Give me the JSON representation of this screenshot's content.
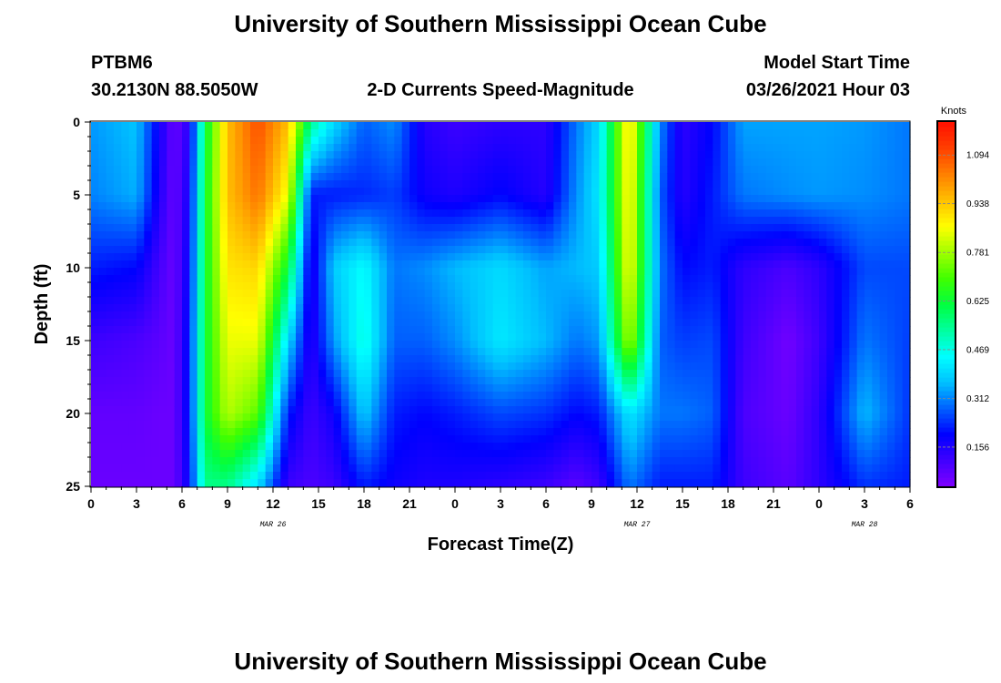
{
  "titles": {
    "top": "University of Southern Mississippi Ocean Cube",
    "bottom": "University of Southern Mississippi Ocean Cube"
  },
  "header": {
    "station": "PTBM6",
    "coords": "30.2130N 88.5050W",
    "plot_title": "2-D Currents Speed-Magnitude",
    "model_label": "Model Start Time",
    "model_time": "03/26/2021 Hour 03"
  },
  "chart_data": {
    "type": "heatmap",
    "title": "2-D Currents Speed-Magnitude",
    "xlabel": "Forecast Time(Z)",
    "ylabel": "Depth (ft)",
    "x_tick_labels": [
      "0",
      "3",
      "6",
      "9",
      "12",
      "15",
      "18",
      "21",
      "0",
      "3",
      "6",
      "9",
      "12",
      "15",
      "18",
      "21",
      "0",
      "3",
      "6"
    ],
    "x_tick_hours": [
      0,
      3,
      6,
      9,
      12,
      15,
      18,
      21,
      24,
      27,
      30,
      33,
      36,
      39,
      42,
      45,
      48,
      51,
      54
    ],
    "x_date_labels": [
      {
        "label": "MAR 26",
        "hour": 12
      },
      {
        "label": "MAR 27",
        "hour": 36
      },
      {
        "label": "MAR 28",
        "hour": 51
      }
    ],
    "xlim": [
      0,
      54
    ],
    "y_ticks": [
      0,
      5,
      10,
      15,
      20,
      25
    ],
    "ylim": [
      0,
      25
    ],
    "y_inverted": true,
    "colorbar": {
      "unit": "Knots",
      "range": [
        0.03,
        1.2
      ],
      "ticks": [
        0.156,
        0.312,
        0.469,
        0.625,
        0.781,
        0.938,
        1.094
      ],
      "tick_labels": [
        "0.156",
        "0.312",
        "0.469",
        "0.625",
        "0.781",
        "0.938",
        "1.094"
      ],
      "colors": [
        "#8000ff",
        "#4000ff",
        "#0000ff",
        "#0060ff",
        "#00c0ff",
        "#00ffff",
        "#00ffa0",
        "#00ff40",
        "#40ff00",
        "#a0ff00",
        "#ffff00",
        "#ffc000",
        "#ff8000",
        "#ff4000",
        "#ff1000"
      ]
    },
    "depth_grid_ft": [
      0,
      5,
      10,
      15,
      20,
      25
    ],
    "speed_profiles": [
      {
        "hour": 0,
        "speed": [
          0.33,
          0.31,
          0.22,
          0.12,
          0.07,
          0.06
        ]
      },
      {
        "hour": 3,
        "speed": [
          0.37,
          0.35,
          0.2,
          0.1,
          0.07,
          0.06
        ]
      },
      {
        "hour": 4.5,
        "speed": [
          0.18,
          0.16,
          0.11,
          0.08,
          0.06,
          0.06
        ]
      },
      {
        "hour": 5.5,
        "speed": [
          0.06,
          0.06,
          0.06,
          0.06,
          0.06,
          0.06
        ]
      },
      {
        "hour": 6.5,
        "speed": [
          0.15,
          0.18,
          0.2,
          0.22,
          0.22,
          0.2
        ]
      },
      {
        "hour": 7.5,
        "speed": [
          0.6,
          0.62,
          0.62,
          0.62,
          0.62,
          0.55
        ]
      },
      {
        "hour": 9,
        "speed": [
          0.95,
          0.95,
          0.9,
          0.85,
          0.8,
          0.55
        ]
      },
      {
        "hour": 11,
        "speed": [
          1.1,
          1.05,
          0.92,
          0.85,
          0.72,
          0.4
        ]
      },
      {
        "hour": 13,
        "speed": [
          0.95,
          0.85,
          0.62,
          0.4,
          0.22,
          0.12
        ]
      },
      {
        "hour": 14.5,
        "speed": [
          0.55,
          0.22,
          0.15,
          0.14,
          0.12,
          0.1
        ]
      },
      {
        "hour": 16,
        "speed": [
          0.4,
          0.22,
          0.38,
          0.33,
          0.18,
          0.12
        ]
      },
      {
        "hour": 18,
        "speed": [
          0.28,
          0.23,
          0.45,
          0.48,
          0.38,
          0.22
        ]
      },
      {
        "hour": 20,
        "speed": [
          0.32,
          0.25,
          0.3,
          0.28,
          0.22,
          0.18
        ]
      },
      {
        "hour": 22,
        "speed": [
          0.15,
          0.18,
          0.32,
          0.28,
          0.2,
          0.16
        ]
      },
      {
        "hour": 24,
        "speed": [
          0.12,
          0.16,
          0.36,
          0.32,
          0.22,
          0.16
        ]
      },
      {
        "hour": 27,
        "speed": [
          0.14,
          0.2,
          0.4,
          0.42,
          0.26,
          0.14
        ]
      },
      {
        "hour": 30,
        "speed": [
          0.14,
          0.15,
          0.34,
          0.36,
          0.24,
          0.12
        ]
      },
      {
        "hour": 32,
        "speed": [
          0.3,
          0.32,
          0.36,
          0.3,
          0.2,
          0.08
        ]
      },
      {
        "hour": 33.5,
        "speed": [
          0.4,
          0.42,
          0.38,
          0.33,
          0.22,
          0.12
        ]
      },
      {
        "hour": 35.5,
        "speed": [
          0.92,
          0.9,
          0.88,
          0.8,
          0.42,
          0.3
        ]
      },
      {
        "hour": 37.5,
        "speed": [
          0.32,
          0.28,
          0.3,
          0.28,
          0.3,
          0.22
        ]
      },
      {
        "hour": 39,
        "speed": [
          0.14,
          0.15,
          0.2,
          0.25,
          0.3,
          0.22
        ]
      },
      {
        "hour": 41,
        "speed": [
          0.2,
          0.22,
          0.22,
          0.26,
          0.28,
          0.22
        ]
      },
      {
        "hour": 43,
        "speed": [
          0.34,
          0.3,
          0.14,
          0.12,
          0.1,
          0.12
        ]
      },
      {
        "hour": 46,
        "speed": [
          0.34,
          0.32,
          0.1,
          0.05,
          0.06,
          0.08
        ]
      },
      {
        "hour": 48,
        "speed": [
          0.34,
          0.33,
          0.14,
          0.12,
          0.14,
          0.14
        ]
      },
      {
        "hour": 51,
        "speed": [
          0.33,
          0.32,
          0.26,
          0.3,
          0.36,
          0.24
        ]
      },
      {
        "hour": 54,
        "speed": [
          0.3,
          0.3,
          0.26,
          0.25,
          0.24,
          0.22
        ]
      }
    ]
  }
}
